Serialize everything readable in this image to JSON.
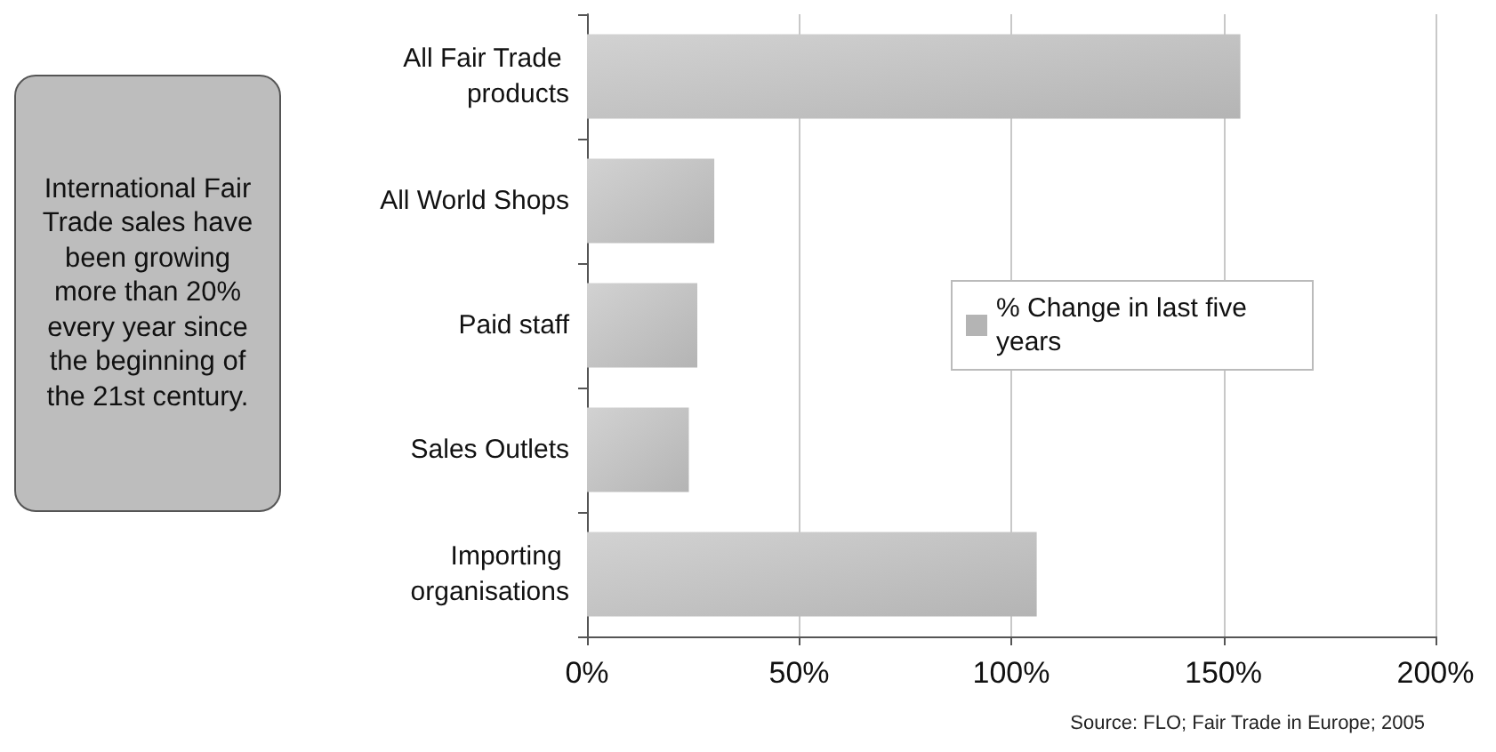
{
  "chart_data": {
    "type": "bar",
    "orientation": "horizontal",
    "categories": [
      "All Fair Trade products",
      "All World Shops",
      "Paid staff",
      "Sales Outlets",
      "Importing organisations"
    ],
    "series": [
      {
        "name": "% Change in last five years",
        "color": "#b4b4b4",
        "values": [
          154,
          30,
          26,
          24,
          106
        ]
      }
    ],
    "xlim": [
      0,
      200
    ],
    "xticks": [
      {
        "value": 0,
        "label": "0%"
      },
      {
        "value": 50,
        "label": "50%"
      },
      {
        "value": 100,
        "label": "100%"
      },
      {
        "value": 150,
        "label": "150%"
      },
      {
        "value": 200,
        "label": "200%"
      }
    ],
    "grid": "x",
    "legend": "right",
    "annotations": [
      "International Fair Trade sales have been growing more than 20% every year since the beginning of the 21st century.",
      "Source: FLO; Fair Trade in Europe; 2005"
    ]
  }
}
